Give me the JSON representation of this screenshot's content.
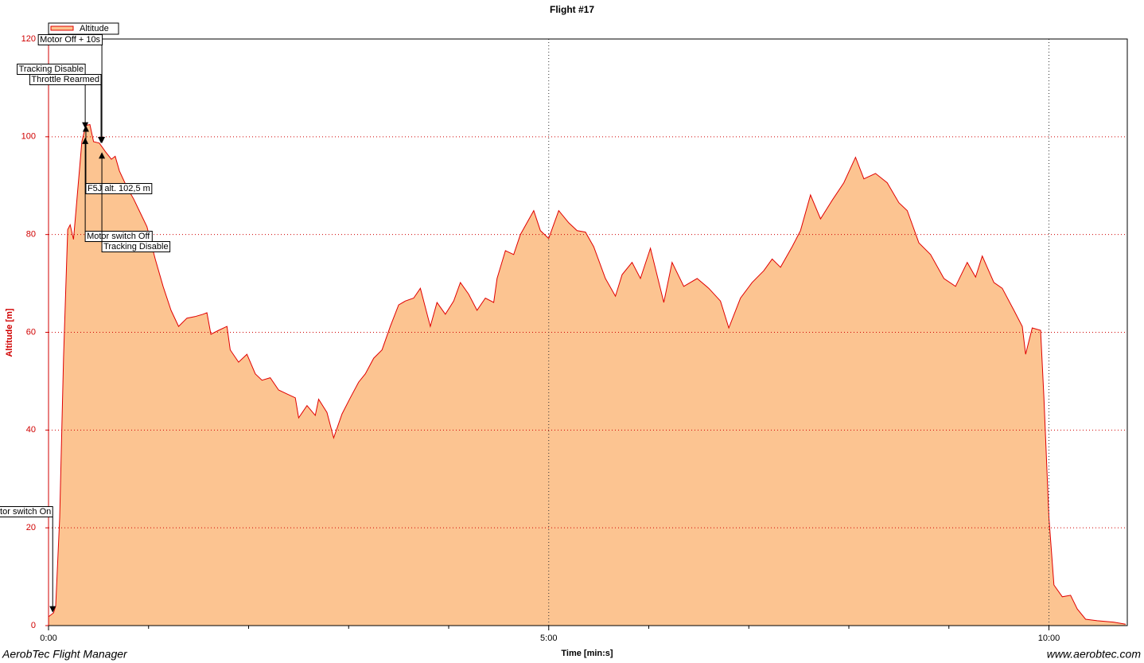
{
  "chart_data": {
    "type": "area",
    "title": "Flight #17",
    "x_label": "Time [min:s]",
    "y_label": "Altitude [m]",
    "footer_left": "AerobTec Flight Manager",
    "footer_right": "www.aerobtec.com",
    "legend": "top-left",
    "grid": true,
    "xlim": [
      0,
      647
    ],
    "ylim": [
      0,
      120
    ],
    "xticks": [
      {
        "value": 0,
        "label": "0:00"
      },
      {
        "value": 300,
        "label": "5:00"
      },
      {
        "value": 600,
        "label": "10:00"
      }
    ],
    "xminorticks": [
      60,
      120,
      180,
      240,
      360,
      420,
      480,
      540
    ],
    "yticks": [
      0,
      20,
      40,
      60,
      80,
      100,
      120
    ],
    "series": [
      {
        "name": "Altitude",
        "color": "#e00000",
        "fill": "#fcc491",
        "x": [
          0,
          3,
          4.3,
          6.7,
          9,
          11.5,
          13,
          15,
          17,
          20,
          22.4,
          24.8,
          27,
          30.5,
          34,
          37.7,
          40,
          42.5,
          47,
          51,
          54.4,
          59,
          64,
          68.7,
          73.5,
          78,
          83,
          87.8,
          92.6,
          95,
          97.4,
          102,
          107,
          109,
          114,
          119,
          124,
          128,
          133,
          138,
          143,
          148,
          150,
          155,
          160,
          162,
          167,
          171,
          176,
          181,
          186,
          190,
          195,
          200,
          205,
          210,
          214,
          219,
          223,
          229,
          233,
          238,
          243,
          247,
          252,
          257,
          262,
          267,
          269,
          274,
          279,
          283,
          291,
          295,
          300,
          306,
          312,
          317,
          322,
          327,
          334,
          340,
          344,
          350,
          355,
          361,
          369,
          374,
          381,
          389,
          396,
          403,
          408,
          415,
          422,
          429,
          434,
          439,
          446,
          451,
          457,
          463,
          470,
          477,
          484,
          489,
          496,
          503,
          510,
          515,
          522,
          529,
          537,
          544,
          551,
          556,
          560,
          567,
          572,
          579,
          584,
          586,
          590,
          595,
          597,
          600,
          603,
          608,
          613,
          617,
          622,
          629,
          639,
          646
        ],
        "values": [
          1.8,
          2.6,
          4,
          22,
          55,
          81,
          82,
          79,
          87,
          99,
          102.3,
          102.5,
          99,
          98.7,
          97,
          95.4,
          96,
          93,
          89.7,
          87.3,
          84.9,
          81.6,
          75,
          69.4,
          64.5,
          61.2,
          62.9,
          63.2,
          63.7,
          64,
          59.6,
          60.4,
          61.2,
          56.4,
          53.9,
          55.5,
          51.5,
          50.2,
          50.7,
          48.2,
          47.4,
          46.6,
          42.5,
          45,
          43,
          46.3,
          43.6,
          38.4,
          43.3,
          46.6,
          49.8,
          51.5,
          54.7,
          56.4,
          61.2,
          65.6,
          66.4,
          67,
          69,
          61.2,
          66.1,
          63.7,
          66.4,
          70.2,
          67.8,
          64.5,
          67,
          66.1,
          71,
          76.7,
          75.9,
          80,
          84.9,
          80.8,
          79.2,
          84.9,
          82.4,
          80.8,
          80.5,
          77.5,
          71,
          67.4,
          71.8,
          74.3,
          71,
          77.2,
          66.1,
          74.3,
          69.4,
          71,
          69,
          66.4,
          60.9,
          67,
          70.2,
          72.6,
          75,
          73.3,
          77.5,
          80.8,
          88.1,
          83.2,
          87,
          90.6,
          95.8,
          91.4,
          92.5,
          90.6,
          86.5,
          84.9,
          78.3,
          75.9,
          71,
          69.4,
          74.3,
          71.3,
          75.6,
          70.2,
          69,
          64.5,
          61.2,
          55.5,
          60.9,
          60.4,
          46.6,
          22.1,
          8.3,
          5.9,
          6.2,
          3.4,
          1.3,
          1,
          0.7,
          0.3
        ]
      }
    ],
    "annotations": [
      {
        "text": "Motor switch On",
        "x": 2.5,
        "y": 2.5
      },
      {
        "text": "Motor Off + 10s",
        "x": 32,
        "y": 98.5
      },
      {
        "text": "Tracking Disable",
        "x": 22,
        "y": 101.5
      },
      {
        "text": "Throttle Rearmed",
        "x": 31.5,
        "y": 98.5
      },
      {
        "text": "F5J alt. 102,5 m",
        "x": 22.4,
        "y": 102.5
      },
      {
        "text": "Motor switch Off",
        "x": 22,
        "y": 100
      },
      {
        "text": "Tracking Disable",
        "x": 32,
        "y": 97
      }
    ]
  }
}
